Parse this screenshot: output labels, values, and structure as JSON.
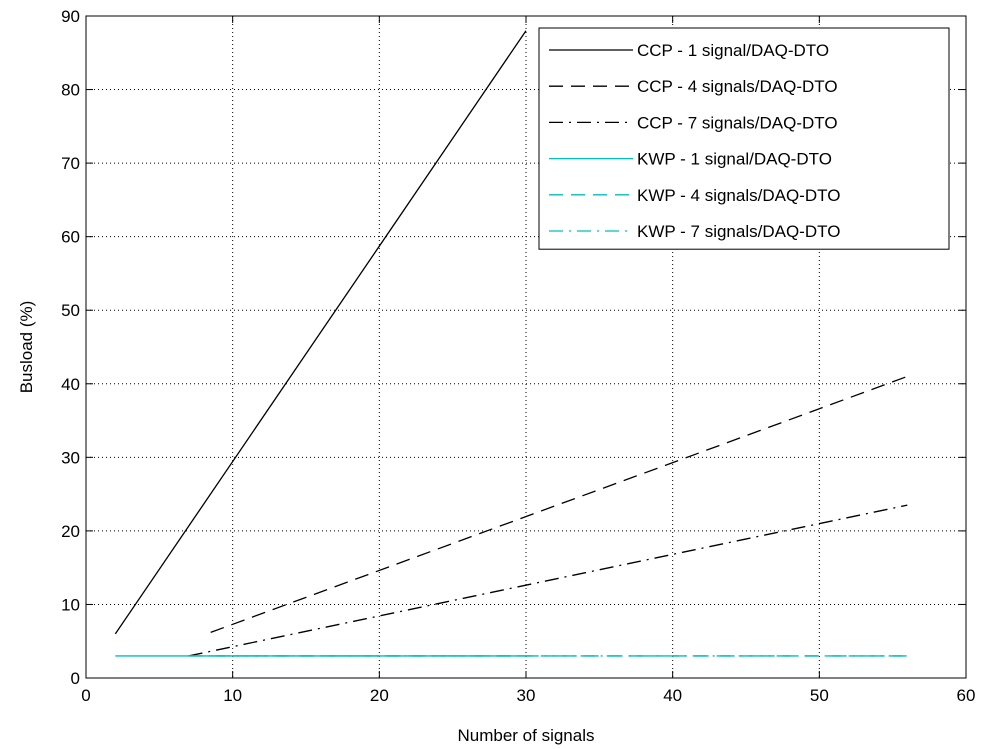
{
  "chart_data": {
    "type": "line",
    "title": "",
    "xlabel": "Number of signals",
    "ylabel": "Busload (%)",
    "xlim": [
      0,
      60
    ],
    "ylim": [
      0,
      90
    ],
    "xticks": [
      0,
      10,
      20,
      30,
      40,
      50,
      60
    ],
    "yticks": [
      0,
      10,
      20,
      30,
      40,
      50,
      60,
      70,
      80,
      90
    ],
    "grid": true,
    "legend_position": "top-right",
    "series": [
      {
        "name": "CCP - 1 signal/DAQ-DTO",
        "color": "#000000",
        "dash": "solid",
        "x": [
          2,
          30
        ],
        "y": [
          6,
          88
        ]
      },
      {
        "name": "CCP - 4 signals/DAQ-DTO",
        "color": "#000000",
        "dash": "dashed",
        "x": [
          8.5,
          56
        ],
        "y": [
          6.2,
          41
        ]
      },
      {
        "name": "CCP - 7 signals/DAQ-DTO",
        "color": "#000000",
        "dash": "dashdot",
        "x": [
          7,
          56
        ],
        "y": [
          3,
          23.5
        ]
      },
      {
        "name": "KWP - 1 signal/DAQ-DTO",
        "color": "#00bfbf",
        "dash": "solid",
        "x": [
          2,
          30
        ],
        "y": [
          3,
          3
        ]
      },
      {
        "name": "KWP - 4 signals/DAQ-DTO",
        "color": "#00bfbf",
        "dash": "dashed",
        "x": [
          8.5,
          56
        ],
        "y": [
          3,
          3
        ]
      },
      {
        "name": "KWP - 7 signals/DAQ-DTO",
        "color": "#00bfbf",
        "dash": "dashdot",
        "x": [
          7,
          56
        ],
        "y": [
          3,
          3
        ]
      }
    ]
  }
}
